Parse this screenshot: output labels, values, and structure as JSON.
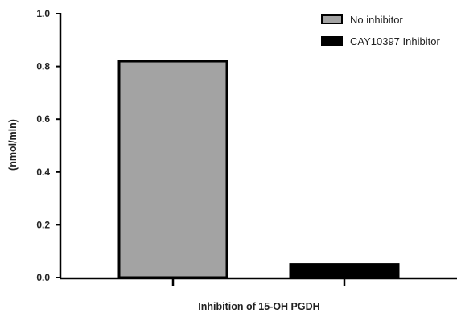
{
  "chart_data": {
    "type": "bar",
    "title": "",
    "xlabel": "Inhibition of 15-OH PGDH",
    "ylabel": "(nmol/min)",
    "ylim": [
      0,
      1.0
    ],
    "yticks": [
      "0.0",
      "0.2",
      "0.4",
      "0.6",
      "0.8",
      "1.0"
    ],
    "grid": false,
    "legend_position": "top-right",
    "series": [
      {
        "name": "No inhibitor",
        "value": 0.82,
        "color": "#a3a3a3"
      },
      {
        "name": "CAY10397 Inhibitor",
        "value": 0.05,
        "color": "#000000"
      }
    ]
  }
}
